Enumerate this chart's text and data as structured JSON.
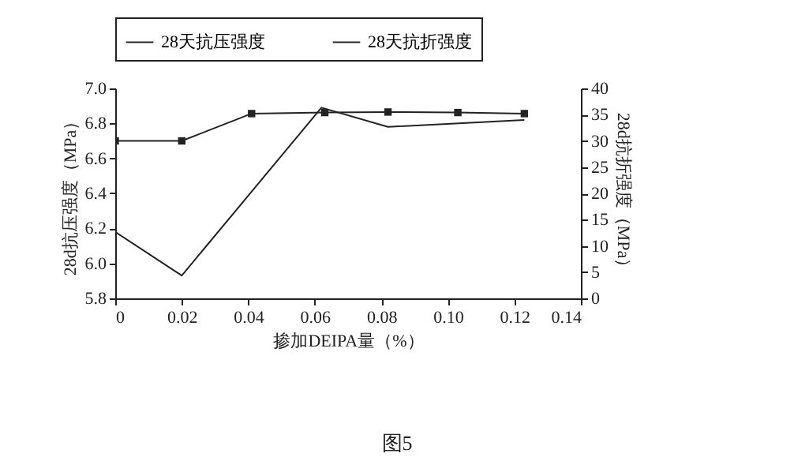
{
  "chart_data": {
    "type": "line",
    "xlabel": "掺加DEIPA量（%）",
    "ylabel": "28d抗压强度（MPa）",
    "y2label": "28d抗折强度（MPa）",
    "annotations": [
      "图5"
    ],
    "xlim": [
      0,
      0.14
    ],
    "xticks": [
      0,
      0.02,
      0.04,
      0.06,
      0.08,
      {
        "value": 0.1,
        "label": "0.10"
      },
      0.12,
      0.14
    ],
    "ylim": [
      5.8,
      7.0
    ],
    "yticks": [
      5.8,
      {
        "value": 6,
        "label": "6.0"
      },
      6.2,
      6.4,
      6.6,
      6.8,
      {
        "value": 7,
        "label": "7.0"
      }
    ],
    "y2lim": [
      0,
      40
    ],
    "y2ticks": [
      0,
      5,
      10,
      15,
      20,
      25,
      30,
      35,
      40
    ],
    "grid": false,
    "legend": "top",
    "line_style": "solid",
    "series": [
      {
        "name": "28天抗压强度",
        "color": "#222222",
        "marker": "none",
        "x": [
          0,
          0.02,
          0.062,
          0.082,
          0.123
        ],
        "values": [
          6.18,
          5.93,
          6.89,
          6.78,
          6.82
        ]
      },
      {
        "name": "28天抗折强度",
        "color": "#222222",
        "marker": "square",
        "axis": "y2",
        "x": [
          0,
          0.02,
          0.041,
          0.063,
          0.082,
          0.103,
          0.123
        ],
        "values": [
          30,
          30,
          35.2,
          35.4,
          35.5,
          35.4,
          35.2
        ]
      }
    ]
  }
}
